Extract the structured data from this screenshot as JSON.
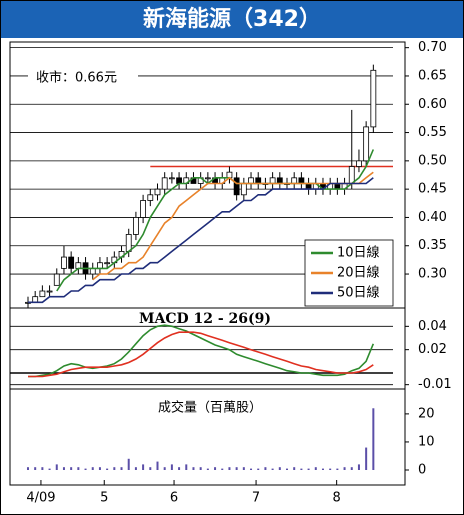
{
  "chart_data": [
    {
      "type": "candlestick",
      "title": "新海能源（342）",
      "annotation": "收市：0.66元",
      "open": [
        0.25,
        0.25,
        0.26,
        0.27,
        0.28,
        0.31,
        0.33,
        0.31,
        0.32,
        0.3,
        0.31,
        0.32,
        0.32,
        0.33,
        0.34,
        0.37,
        0.4,
        0.43,
        0.44,
        0.45,
        0.47,
        0.47,
        0.46,
        0.47,
        0.46,
        0.47,
        0.47,
        0.46,
        0.47,
        0.47,
        0.44,
        0.46,
        0.47,
        0.46,
        0.46,
        0.47,
        0.46,
        0.46,
        0.47,
        0.46,
        0.45,
        0.46,
        0.45,
        0.46,
        0.45,
        0.46,
        0.49,
        0.5,
        0.56
      ],
      "high": [
        0.26,
        0.27,
        0.28,
        0.28,
        0.31,
        0.35,
        0.34,
        0.33,
        0.33,
        0.32,
        0.33,
        0.33,
        0.34,
        0.35,
        0.38,
        0.41,
        0.44,
        0.45,
        0.46,
        0.48,
        0.48,
        0.48,
        0.48,
        0.48,
        0.48,
        0.48,
        0.48,
        0.48,
        0.49,
        0.48,
        0.47,
        0.48,
        0.48,
        0.47,
        0.48,
        0.48,
        0.47,
        0.48,
        0.48,
        0.47,
        0.47,
        0.47,
        0.47,
        0.47,
        0.47,
        0.59,
        0.52,
        0.57,
        0.67
      ],
      "low": [
        0.24,
        0.25,
        0.26,
        0.26,
        0.28,
        0.3,
        0.3,
        0.3,
        0.29,
        0.29,
        0.3,
        0.31,
        0.31,
        0.32,
        0.33,
        0.36,
        0.39,
        0.42,
        0.43,
        0.44,
        0.46,
        0.45,
        0.45,
        0.46,
        0.45,
        0.46,
        0.45,
        0.45,
        0.46,
        0.43,
        0.43,
        0.45,
        0.45,
        0.45,
        0.45,
        0.45,
        0.45,
        0.45,
        0.45,
        0.44,
        0.44,
        0.44,
        0.44,
        0.44,
        0.44,
        0.45,
        0.48,
        0.49,
        0.55
      ],
      "close": [
        0.25,
        0.26,
        0.27,
        0.27,
        0.3,
        0.33,
        0.31,
        0.32,
        0.3,
        0.31,
        0.32,
        0.32,
        0.33,
        0.34,
        0.37,
        0.4,
        0.43,
        0.44,
        0.45,
        0.47,
        0.47,
        0.46,
        0.47,
        0.46,
        0.47,
        0.47,
        0.46,
        0.47,
        0.48,
        0.44,
        0.46,
        0.47,
        0.46,
        0.46,
        0.47,
        0.46,
        0.46,
        0.47,
        0.46,
        0.45,
        0.46,
        0.45,
        0.46,
        0.45,
        0.46,
        0.49,
        0.5,
        0.56,
        0.66
      ],
      "series": [
        {
          "name": "10日線",
          "color": "#2e8b2e",
          "values": [
            null,
            null,
            null,
            null,
            0.27,
            0.29,
            0.3,
            0.31,
            0.31,
            0.31,
            0.31,
            0.31,
            0.32,
            0.33,
            0.34,
            0.35,
            0.37,
            0.4,
            0.42,
            0.44,
            0.45,
            0.46,
            0.46,
            0.47,
            0.47,
            0.46,
            0.47,
            0.47,
            0.47,
            0.46,
            0.46,
            0.46,
            0.46,
            0.46,
            0.46,
            0.46,
            0.46,
            0.46,
            0.46,
            0.46,
            0.46,
            0.45,
            0.45,
            0.45,
            0.45,
            0.46,
            0.47,
            0.49,
            0.52
          ]
        },
        {
          "name": "20日線",
          "color": "#e8822a",
          "values": [
            null,
            null,
            null,
            null,
            null,
            null,
            null,
            null,
            null,
            0.29,
            0.3,
            0.3,
            0.31,
            0.31,
            0.32,
            0.32,
            0.33,
            0.35,
            0.37,
            0.39,
            0.4,
            0.42,
            0.43,
            0.44,
            0.45,
            0.46,
            0.46,
            0.46,
            0.47,
            0.46,
            0.46,
            0.46,
            0.46,
            0.46,
            0.46,
            0.46,
            0.46,
            0.46,
            0.46,
            0.46,
            0.46,
            0.46,
            0.46,
            0.46,
            0.46,
            0.46,
            0.46,
            0.47,
            0.48
          ]
        },
        {
          "name": "50日線",
          "color": "#1f2d7a",
          "values": [
            0.25,
            0.25,
            0.25,
            0.26,
            0.26,
            0.26,
            0.27,
            0.27,
            0.28,
            0.28,
            0.29,
            0.29,
            0.29,
            0.3,
            0.3,
            0.31,
            0.31,
            0.32,
            0.32,
            0.33,
            0.34,
            0.35,
            0.36,
            0.37,
            0.38,
            0.39,
            0.4,
            0.41,
            0.41,
            0.42,
            0.43,
            0.43,
            0.44,
            0.44,
            0.45,
            0.45,
            0.45,
            0.45,
            0.45,
            0.45,
            0.45,
            0.45,
            0.46,
            0.46,
            0.46,
            0.46,
            0.46,
            0.46,
            0.47
          ]
        }
      ],
      "reference_line": {
        "value": 0.49,
        "color": "#e03020"
      },
      "legend": "lower right",
      "xlim": [
        -2.5,
        52.4
      ],
      "ylim": [
        0.24,
        0.71
      ],
      "yticks": [
        {
          "value": 0.7,
          "label": "0.70"
        },
        0.65,
        {
          "value": 0.6,
          "label": "0.60"
        },
        0.55,
        {
          "value": 0.5,
          "label": "0.50"
        },
        0.45,
        {
          "value": 0.4,
          "label": "0.40"
        },
        0.35,
        {
          "value": 0.3,
          "label": "0.30"
        }
      ],
      "grid": true
    },
    {
      "type": "line",
      "title": "MACD 12 - 26(9)",
      "series": [
        {
          "color": "#2e8b2e",
          "values": [
            -0.003,
            -0.003,
            -0.002,
            -0.001,
            0.002,
            0.006,
            0.008,
            0.007,
            0.005,
            0.004,
            0.005,
            0.006,
            0.008,
            0.012,
            0.018,
            0.025,
            0.032,
            0.037,
            0.04,
            0.041,
            0.04,
            0.038,
            0.036,
            0.033,
            0.03,
            0.027,
            0.024,
            0.022,
            0.02,
            0.016,
            0.014,
            0.012,
            0.01,
            0.008,
            0.006,
            0.004,
            0.002,
            0.001,
            0.0,
            0.0,
            -0.001,
            -0.002,
            -0.002,
            -0.002,
            -0.001,
            0.002,
            0.004,
            0.01,
            0.025
          ]
        },
        {
          "color": "#e03020",
          "values": [
            -0.003,
            -0.003,
            -0.003,
            -0.002,
            -0.001,
            0.001,
            0.003,
            0.004,
            0.005,
            0.005,
            0.005,
            0.005,
            0.006,
            0.007,
            0.009,
            0.012,
            0.016,
            0.021,
            0.026,
            0.03,
            0.033,
            0.035,
            0.035,
            0.035,
            0.034,
            0.032,
            0.03,
            0.028,
            0.026,
            0.024,
            0.022,
            0.02,
            0.018,
            0.016,
            0.014,
            0.012,
            0.01,
            0.008,
            0.006,
            0.005,
            0.003,
            0.002,
            0.001,
            0.0,
            0.0,
            0.0,
            0.001,
            0.003,
            0.007
          ]
        }
      ],
      "xlim": [
        -2.5,
        52.4
      ],
      "ylim": [
        -0.012,
        0.054
      ],
      "yticks": [
        0.04,
        0.02,
        -0.01
      ],
      "grid": true
    },
    {
      "type": "bar",
      "title": "成交量（百萬股）",
      "color": "#5b4fa8",
      "values": [
        1,
        1,
        1,
        0.5,
        2,
        1,
        1,
        1,
        0.5,
        1,
        1,
        0.5,
        1,
        1,
        4,
        1,
        2,
        1,
        3,
        1,
        2,
        1,
        2,
        1,
        1,
        0.5,
        1,
        0.5,
        1,
        1,
        1,
        0.5,
        0.5,
        1,
        0.5,
        1,
        0.5,
        1,
        0.5,
        0.5,
        1,
        0.5,
        0.5,
        0.5,
        1,
        1,
        2,
        8,
        22
      ],
      "xlim": [
        -2.5,
        52.4
      ],
      "ylim": [
        0,
        27.8
      ],
      "yticks": [
        20,
        10,
        0
      ],
      "xticks": [
        {
          "value": 1.8,
          "label": "4/09"
        },
        {
          "value": 10.6,
          "label": "5"
        },
        {
          "value": 20.3,
          "label": "6"
        },
        {
          "value": 31.7,
          "label": "7"
        },
        {
          "value": 42.9,
          "label": "8"
        }
      ]
    }
  ]
}
